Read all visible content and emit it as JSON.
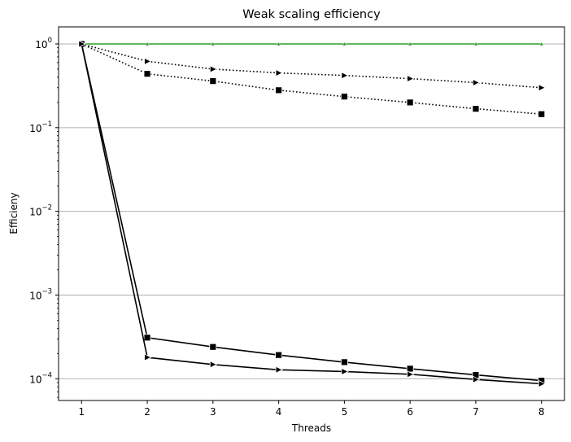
{
  "chart_data": {
    "type": "line",
    "title": "Weak scaling efficiency",
    "xlabel": "Threads",
    "ylabel": "Efficieny",
    "x_ticks": [
      "1",
      "2",
      "3",
      "4",
      "5",
      "6",
      "7",
      "8"
    ],
    "y_scale": "log",
    "ylim": [
      5.5e-05,
      1.6
    ],
    "xlim": [
      0.65,
      8.35
    ],
    "y_ticks": [
      {
        "value": 1,
        "base": "10",
        "exp": "0"
      },
      {
        "value": 0.1,
        "base": "10",
        "exp": "−1"
      },
      {
        "value": 0.01,
        "base": "10",
        "exp": "−2"
      },
      {
        "value": 0.001,
        "base": "10",
        "exp": "−3"
      },
      {
        "value": 0.0001,
        "base": "10",
        "exp": "−4"
      }
    ],
    "grid": "horizontal",
    "legend": "none",
    "x": [
      1,
      2,
      3,
      4,
      5,
      6,
      7,
      8
    ],
    "series": [
      {
        "color": "#2ca02c",
        "line_style": "solid",
        "marker": "triangle-up",
        "values": [
          1,
          1,
          1,
          1,
          1,
          1,
          1,
          1
        ]
      },
      {
        "color": "#000000",
        "line_style": "dotted",
        "marker": "triangle-right",
        "values": [
          1,
          0.62,
          0.5,
          0.45,
          0.42,
          0.385,
          0.345,
          0.3
        ]
      },
      {
        "color": "#000000",
        "line_style": "dotted",
        "marker": "square",
        "values": [
          1,
          0.44,
          0.36,
          0.28,
          0.235,
          0.2,
          0.168,
          0.145
        ]
      },
      {
        "color": "#000000",
        "line_style": "solid",
        "marker": "square",
        "values": [
          1,
          0.00031,
          0.00024,
          0.000192,
          0.000158,
          0.000132,
          0.000111,
          9.5e-05
        ]
      },
      {
        "color": "#000000",
        "line_style": "solid",
        "marker": "triangle-right",
        "values": [
          1,
          0.00018,
          0.000148,
          0.000128,
          0.000122,
          0.000113,
          9.8e-05,
          8.7e-05
        ]
      }
    ]
  }
}
